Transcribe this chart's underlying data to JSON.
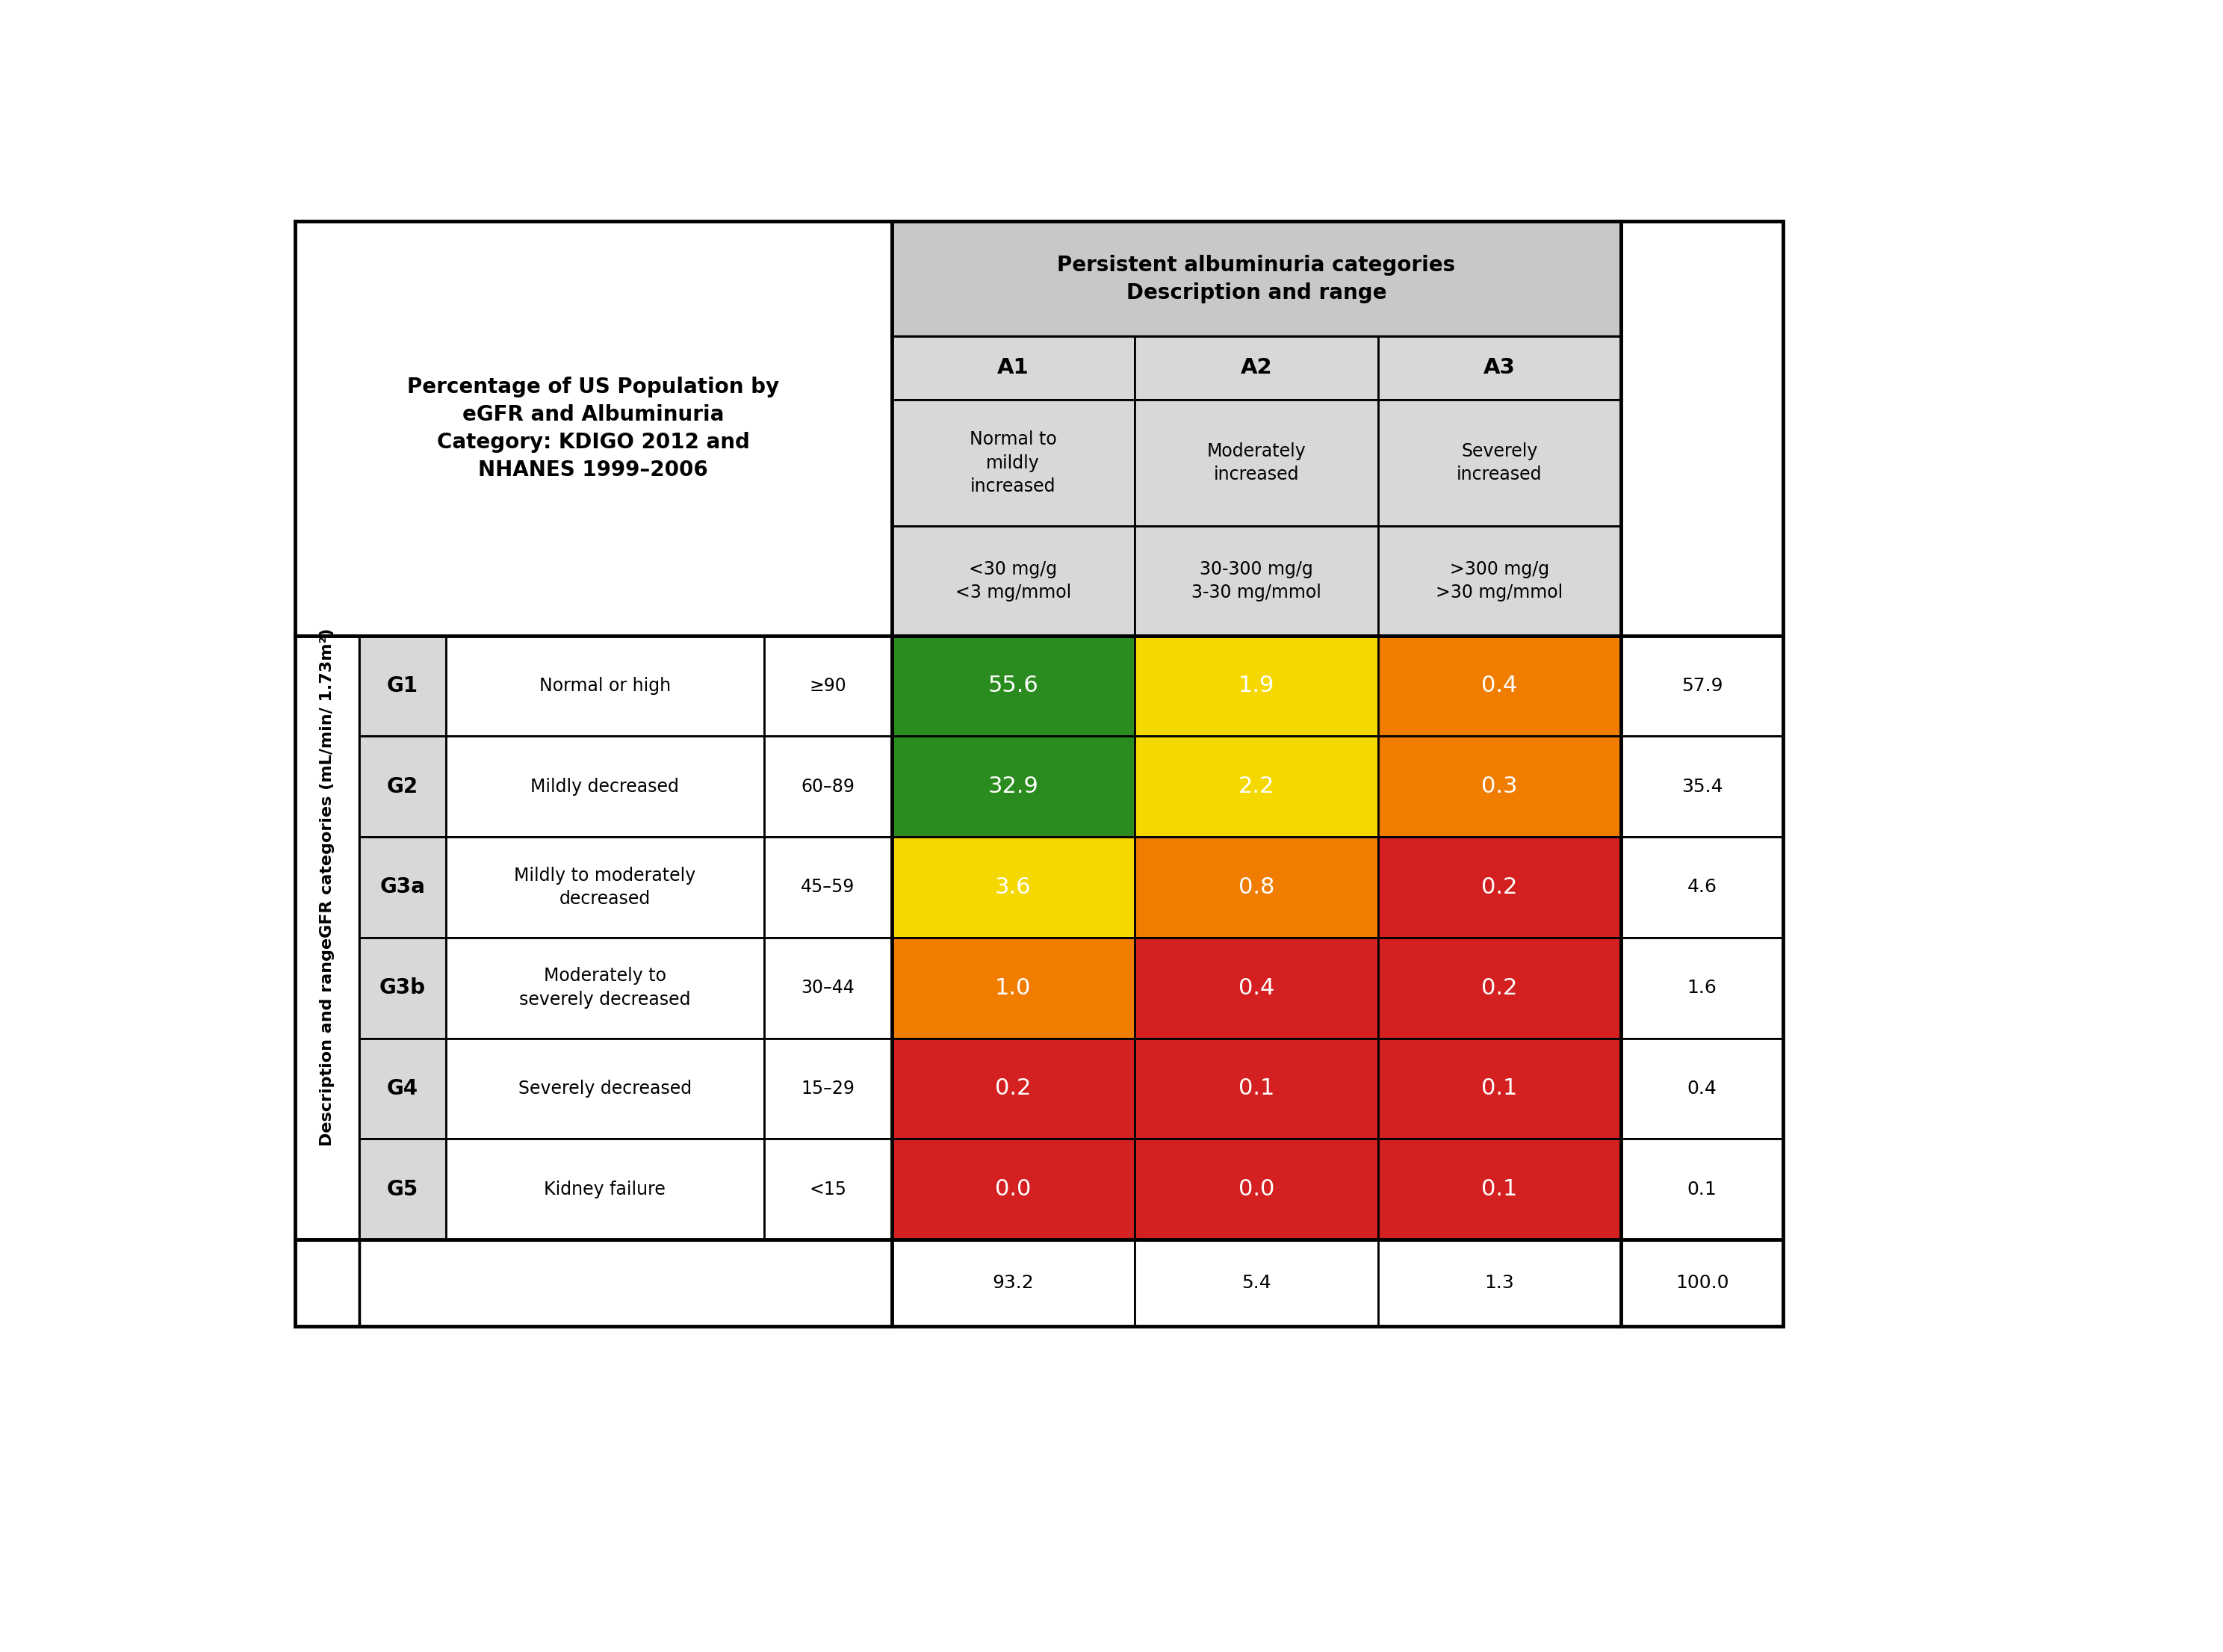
{
  "title_text": "Percentage of US Population by\neGFR and Albuminuria\nCategory: KDIGO 2012 and\nNHANES 1999–2006",
  "col_header_main": "Persistent albuminuria categories\nDescription and range",
  "col_subheaders": [
    "A1",
    "A2",
    "A3"
  ],
  "col_desc": [
    "Normal to\nmildly\nincreased",
    "Moderately\nincreased",
    "Severely\nincreased"
  ],
  "col_range": [
    "<30 mg/g\n<3 mg/mmol",
    "30-300 mg/g\n3-30 mg/mmol",
    ">300 mg/g\n>30 mg/mmol"
  ],
  "row_labels": [
    "G1",
    "G2",
    "G3a",
    "G3b",
    "G4",
    "G5"
  ],
  "row_desc": [
    "Normal or high",
    "Mildly decreased",
    "Mildly to moderately\ndecreased",
    "Moderately to\nseverely decreased",
    "Severely decreased",
    "Kidney failure"
  ],
  "row_range": [
    "≥90",
    "60–89",
    "45–59",
    "30–44",
    "15–29",
    "<15"
  ],
  "row_totals": [
    "57.9",
    "35.4",
    "4.6",
    "1.6",
    "0.4",
    "0.1"
  ],
  "col_totals": [
    "93.2",
    "5.4",
    "1.3",
    "100.0"
  ],
  "cell_values": [
    [
      "55.6",
      "1.9",
      "0.4"
    ],
    [
      "32.9",
      "2.2",
      "0.3"
    ],
    [
      "3.6",
      "0.8",
      "0.2"
    ],
    [
      "1.0",
      "0.4",
      "0.2"
    ],
    [
      "0.2",
      "0.1",
      "0.1"
    ],
    [
      "0.0",
      "0.0",
      "0.1"
    ]
  ],
  "cell_colors": [
    [
      "#2a8c1e",
      "#f5d800",
      "#f07c00"
    ],
    [
      "#2a8c1e",
      "#f5d800",
      "#f07c00"
    ],
    [
      "#f5d800",
      "#f07c00",
      "#d42020"
    ],
    [
      "#f07c00",
      "#d42020",
      "#d42020"
    ],
    [
      "#d42020",
      "#d42020",
      "#d42020"
    ],
    [
      "#d42020",
      "#d42020",
      "#d42020"
    ]
  ],
  "header_bg": "#c8c8c8",
  "subheader_bg": "#d8d8d8",
  "glabel_bg": "#d8d8d8",
  "white_bg": "#ffffff",
  "border_color": "#000000",
  "text_color_light": "#ffffff",
  "y_axis_label_line1": "GFR categories (mL/min/ 1.73m²)",
  "y_axis_label_line2": "Description and range",
  "fig_width": 29.76,
  "fig_height": 22.11
}
